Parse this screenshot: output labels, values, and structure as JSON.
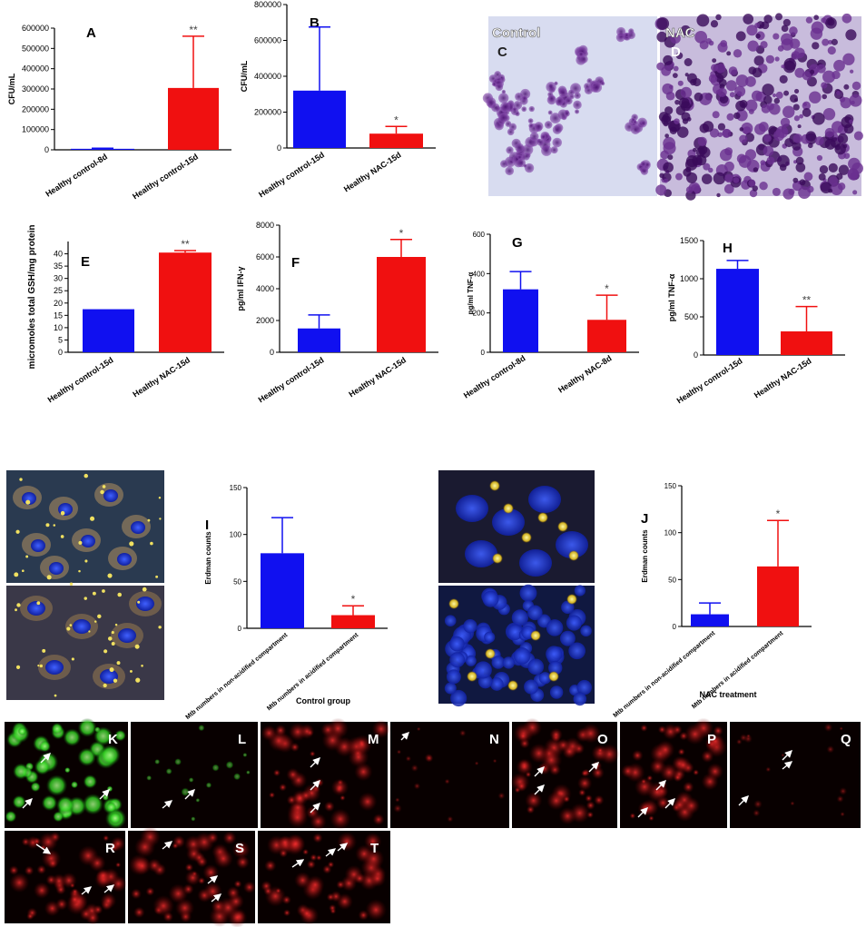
{
  "colors": {
    "blue": "#1010f0",
    "red": "#f01010",
    "axis": "#000000",
    "star": "#444444"
  },
  "chart_data": [
    {
      "id": "A",
      "panel_label": "A",
      "type": "bar",
      "ylabel": "CFU/mL",
      "categories": [
        "Healthy control-8d",
        "Healthy control-15d"
      ],
      "values": [
        5000,
        305000
      ],
      "errors": [
        3000,
        255000
      ],
      "ylim": [
        0,
        600000
      ],
      "yticks": [
        0,
        100000,
        200000,
        300000,
        400000,
        500000,
        600000
      ],
      "colors": [
        "blue",
        "red"
      ],
      "stars": [
        "",
        "**"
      ]
    },
    {
      "id": "B",
      "panel_label": "B",
      "type": "bar",
      "ylabel": "CFU/mL",
      "categories": [
        "Healthy control-15d",
        "Healthy NAC-15d"
      ],
      "values": [
        320000,
        80000
      ],
      "errors": [
        355000,
        40000
      ],
      "ylim": [
        0,
        800000
      ],
      "yticks": [
        0,
        200000,
        400000,
        600000,
        800000
      ],
      "colors": [
        "blue",
        "red"
      ],
      "stars": [
        "",
        "*"
      ]
    },
    {
      "id": "E",
      "panel_label": "E",
      "type": "bar",
      "ylabel": "micromoles total GSH/mg protein",
      "categories": [
        "Healthy control-15d",
        "Healthy NAC-15d"
      ],
      "values": [
        17.5,
        40.5
      ],
      "errors": [
        0,
        0.8
      ],
      "ylim": [
        0,
        45
      ],
      "yticks": [
        0,
        5,
        10,
        15,
        20,
        25,
        30,
        35,
        40
      ],
      "colors": [
        "blue",
        "red"
      ],
      "stars": [
        "",
        "**"
      ]
    },
    {
      "id": "F",
      "panel_label": "F",
      "type": "bar",
      "ylabel": "pg/ml IFN-γ",
      "categories": [
        "Healthy control-15d",
        "Healthy NAC-15d"
      ],
      "values": [
        1500,
        6000
      ],
      "errors": [
        850,
        1100
      ],
      "ylim": [
        0,
        8000
      ],
      "yticks": [
        0,
        2000,
        4000,
        6000,
        8000
      ],
      "colors": [
        "blue",
        "red"
      ],
      "stars": [
        "",
        "*"
      ]
    },
    {
      "id": "G",
      "panel_label": "G",
      "type": "bar",
      "ylabel": "pg/ml TNF-α",
      "categories": [
        "Healthy control-8d",
        "Healthy NAC-8d"
      ],
      "values": [
        320,
        165
      ],
      "errors": [
        90,
        125
      ],
      "ylim": [
        0,
        600
      ],
      "yticks": [
        0,
        200,
        400,
        600
      ],
      "colors": [
        "blue",
        "red"
      ],
      "stars": [
        "",
        "*"
      ]
    },
    {
      "id": "H",
      "panel_label": "H",
      "type": "bar",
      "ylabel": "pg/ml TNF-α",
      "categories": [
        "Healthy control-15d",
        "Healthy NAC-15d"
      ],
      "values": [
        1130,
        310
      ],
      "errors": [
        110,
        325
      ],
      "ylim": [
        0,
        1500
      ],
      "yticks": [
        0,
        500,
        1000,
        1500
      ],
      "colors": [
        "blue",
        "red"
      ],
      "stars": [
        "",
        "**"
      ]
    },
    {
      "id": "I",
      "panel_label": "I",
      "type": "bar",
      "ylabel": "Erdman counts",
      "xlabel": "Control group",
      "categories": [
        "Mtb numbers in non-acidified compartment",
        "Mtb numbers in acidified compartment"
      ],
      "values": [
        80,
        14
      ],
      "errors": [
        38,
        10
      ],
      "ylim": [
        0,
        150
      ],
      "yticks": [
        0,
        50,
        100,
        150
      ],
      "colors": [
        "blue",
        "red"
      ],
      "stars": [
        "",
        "*"
      ]
    },
    {
      "id": "J",
      "panel_label": "J",
      "type": "bar",
      "ylabel": "Erdman counts",
      "xlabel": "NAC treatment",
      "categories": [
        "Mtb numbers in non-acidified compartment",
        "Mtb numbers in acidified compartment"
      ],
      "values": [
        13,
        64
      ],
      "errors": [
        12,
        49
      ],
      "ylim": [
        0,
        150
      ],
      "yticks": [
        0,
        50,
        100,
        150
      ],
      "colors": [
        "blue",
        "red"
      ],
      "stars": [
        "",
        "*"
      ]
    }
  ],
  "micrographs": {
    "C": {
      "label": "C",
      "caption": "Control"
    },
    "D": {
      "label": "D",
      "caption": "NAC"
    }
  },
  "fluorescence_panels": [
    "K",
    "L",
    "M",
    "N",
    "O",
    "P",
    "Q",
    "R",
    "S",
    "T"
  ]
}
